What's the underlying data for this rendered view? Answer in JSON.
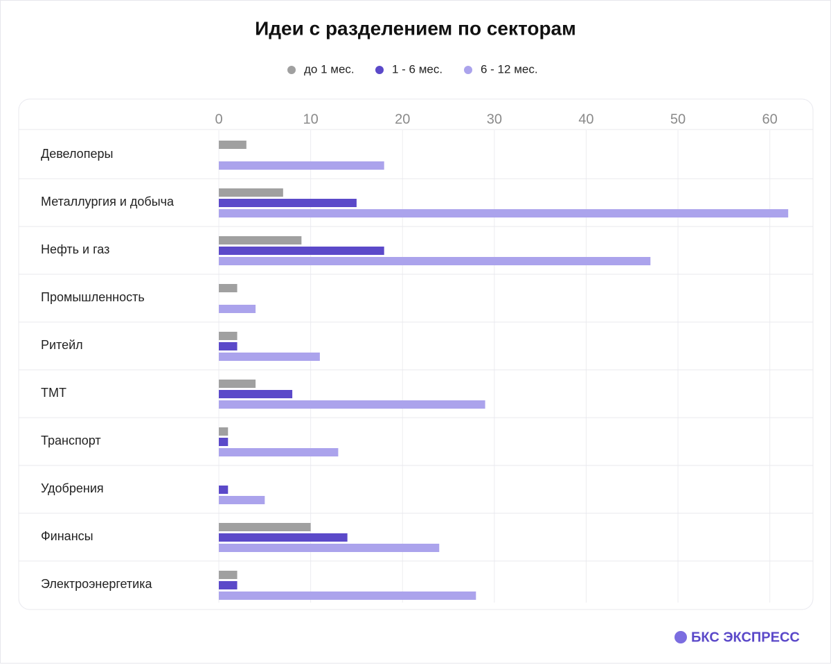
{
  "chart_data": {
    "type": "hbar",
    "title": "Идеи с разделением по секторам",
    "categories": [
      "Девелоперы",
      "Металлургия и добыча",
      "Нефть и газ",
      "Промышленность",
      "Ритейл",
      "ТМТ",
      "Транспорт",
      "Удобрения",
      "Финансы",
      "Электроэнергетика"
    ],
    "series": [
      {
        "name": "до 1 мес.",
        "color": "#a0a0a0",
        "values": [
          3,
          7,
          9,
          2,
          2,
          4,
          1,
          0,
          10,
          2
        ]
      },
      {
        "name": "1 - 6 мес.",
        "color": "#5b49c9",
        "values": [
          0,
          15,
          18,
          0,
          2,
          8,
          1,
          1,
          14,
          2
        ]
      },
      {
        "name": "6 - 12 мес.",
        "color": "#aba3ec",
        "values": [
          18,
          62,
          47,
          4,
          11,
          29,
          13,
          5,
          24,
          28
        ]
      }
    ],
    "xlim": [
      0,
      64.7
    ],
    "xticks": [
      0,
      10,
      20,
      30,
      40,
      50,
      60
    ],
    "grid": true,
    "legend": "top"
  },
  "brand": "БКС ЭКСПРЕСС"
}
